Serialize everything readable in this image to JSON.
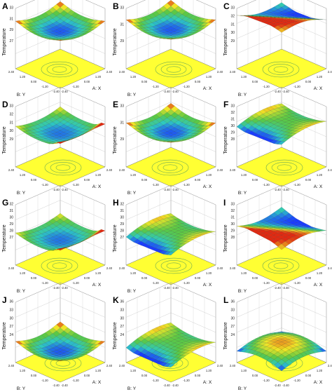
{
  "figure": {
    "axis_titles": {
      "x": "A: X",
      "y": "B: Y",
      "z": "Temperature"
    },
    "x_ticks": [
      "-2.40",
      "-1.20",
      "0.00",
      "1.20",
      "2.40"
    ],
    "y_ticks": [
      "-2.40",
      "-1.20",
      "0.00",
      "1.20",
      "2.40"
    ],
    "colors": {
      "floor": "#ffff33",
      "contour": "#6aaa55",
      "low": "#1a3cff",
      "mid": "#2ec9c0",
      "high": "#e02a12"
    },
    "panels": [
      {
        "label": "A",
        "z_ticks": [
          "27",
          "29",
          "31",
          "33"
        ],
        "surface": "bowl",
        "level": 0.7,
        "tilt": 0.0,
        "show_z_title": true
      },
      {
        "label": "B",
        "z_ticks": [
          "29",
          "31",
          "33"
        ],
        "surface": "bowl",
        "level": 0.72,
        "tilt": 0.0,
        "show_z_title": true
      },
      {
        "label": "C",
        "z_ticks": [
          "29",
          "30",
          "31",
          "32",
          "33"
        ],
        "surface": "ridge",
        "level": 0.84,
        "tilt": 0.15,
        "show_z_title": true
      },
      {
        "label": "D",
        "z_ticks": [
          "29",
          "30",
          "31",
          "32",
          "33"
        ],
        "surface": "bowl-edge",
        "level": 0.62,
        "tilt": 0.0,
        "show_z_title": true
      },
      {
        "label": "E",
        "z_ticks": [
          "29",
          "31",
          "33"
        ],
        "surface": "bowl",
        "level": 0.64,
        "tilt": 0.0,
        "show_z_title": true
      },
      {
        "label": "F",
        "z_ticks": [
          "28",
          "29",
          "30",
          "31",
          "32",
          "33"
        ],
        "surface": "saddle",
        "level": 0.72,
        "tilt": 0.1,
        "show_z_title": true
      },
      {
        "label": "G",
        "z_ticks": [
          "27",
          "28",
          "29",
          "30",
          "31",
          "32"
        ],
        "surface": "bowl-edge",
        "level": 0.48,
        "tilt": 0.0,
        "show_z_title": true
      },
      {
        "label": "H",
        "z_ticks": [
          "27",
          "28",
          "29",
          "30",
          "31",
          "32"
        ],
        "surface": "saddle",
        "level": 0.52,
        "tilt": 0.08,
        "show_z_title": true
      },
      {
        "label": "I",
        "z_ticks": [
          "28",
          "29",
          "30",
          "31",
          "32",
          "33"
        ],
        "surface": "ridge",
        "level": 0.6,
        "tilt": -0.2,
        "show_z_title": true
      },
      {
        "label": "J",
        "z_ticks": [
          "24",
          "27",
          "30",
          "33",
          "36"
        ],
        "surface": "bowl",
        "level": 0.26,
        "tilt": 0.0,
        "show_z_title": true
      },
      {
        "label": "K",
        "z_ticks": [
          "24",
          "27",
          "30",
          "33",
          "36"
        ],
        "surface": "saddle",
        "level": 0.3,
        "tilt": 0.0,
        "show_z_title": true
      },
      {
        "label": "L",
        "z_ticks": [
          "24",
          "27",
          "30",
          "33",
          "36"
        ],
        "surface": "dome",
        "level": 0.28,
        "tilt": 0.0,
        "show_z_title": true
      }
    ]
  }
}
